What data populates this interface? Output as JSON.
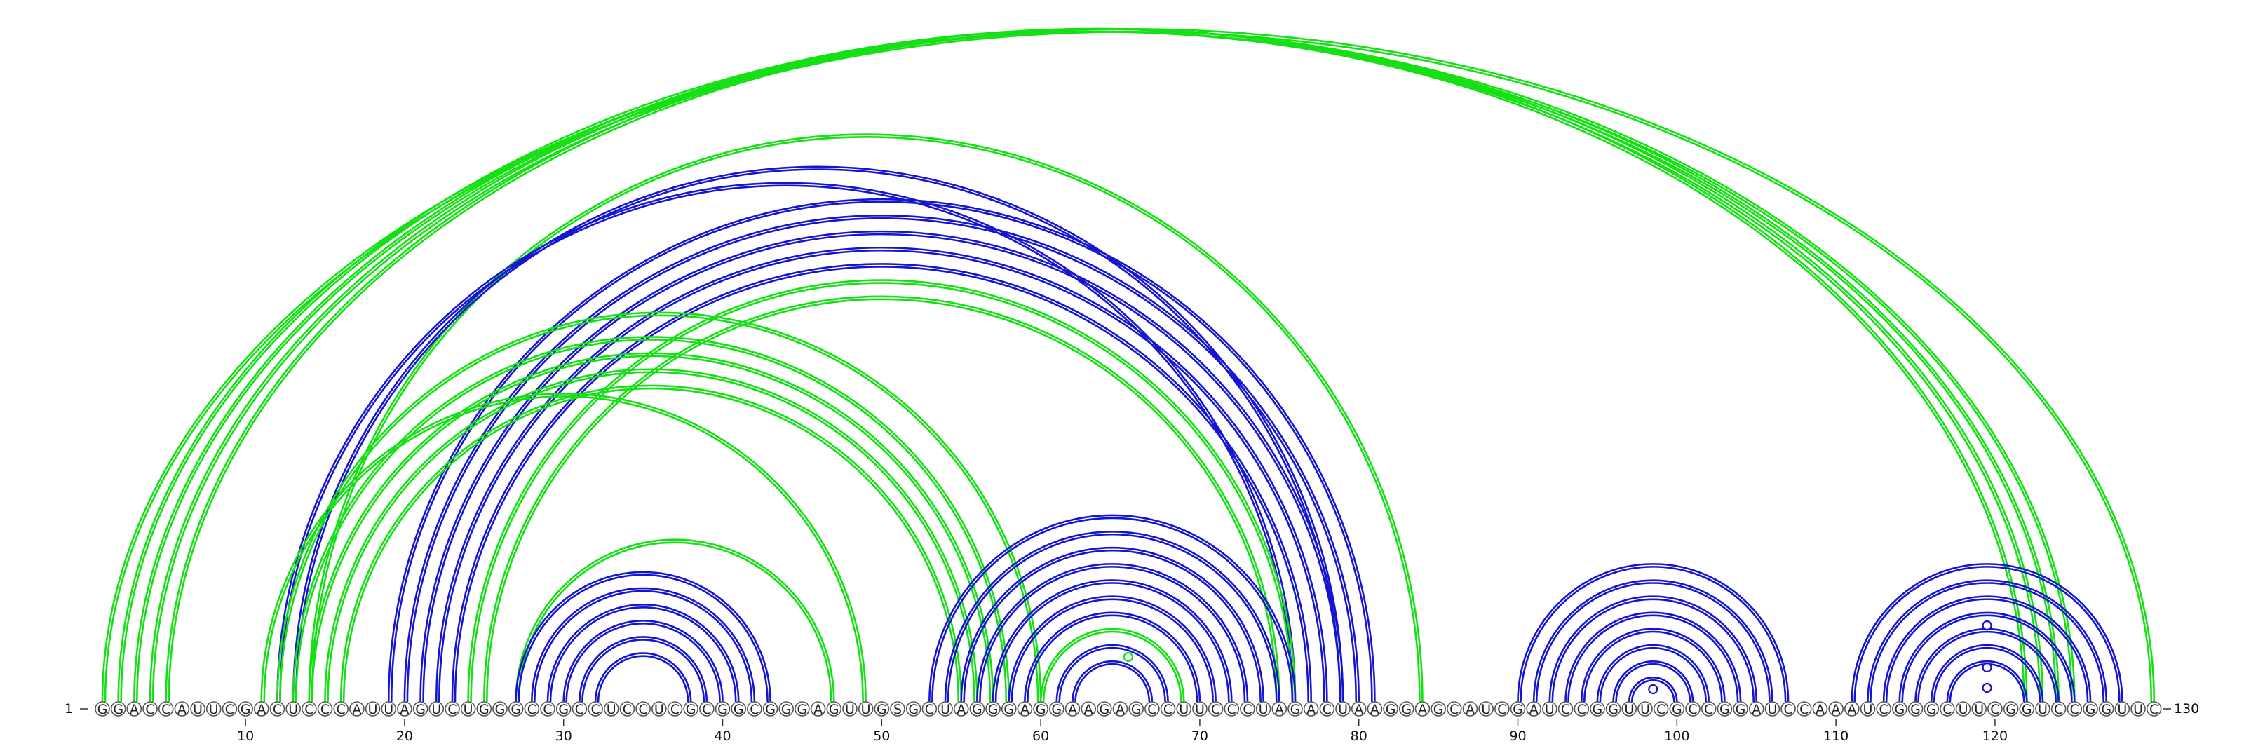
{
  "sequence": "GGACCAUUCGACUCCCAUUAGUCUGGGCCGCCUCCUCGCGGCGGGAGUUGSGCUAGGGAGGAAGAGCCUUCCCUAGACUAAGGAGCAUCGAUCCGGUUCGCCGGAUCCAAAUCGGGCUUCGGUCCGGUUC",
  "start_label": "1",
  "end_label": "130",
  "ticks": [
    "10",
    "20",
    "30",
    "40",
    "50",
    "60",
    "70",
    "80",
    "90",
    "100",
    "110",
    "120"
  ],
  "colors": {
    "blue": "#1414d2",
    "green": "#14e014"
  },
  "chart_data": {
    "type": "arc-diagram",
    "length": 130,
    "ticks": [
      10,
      20,
      30,
      40,
      50,
      60,
      70,
      80,
      90,
      100,
      110,
      120
    ],
    "pairs": [
      {
        "i": 1,
        "j": 130,
        "color": "green"
      },
      {
        "i": 2,
        "j": 125,
        "color": "green"
      },
      {
        "i": 3,
        "j": 124,
        "color": "green"
      },
      {
        "i": 4,
        "j": 123,
        "color": "green"
      },
      {
        "i": 5,
        "j": 122,
        "color": "green"
      },
      {
        "i": 11,
        "j": 49,
        "color": "green"
      },
      {
        "i": 12,
        "j": 76,
        "color": "blue"
      },
      {
        "i": 12,
        "j": 60,
        "color": "green"
      },
      {
        "i": 13,
        "j": 79,
        "color": "blue"
      },
      {
        "i": 13,
        "j": 58,
        "color": "green"
      },
      {
        "i": 14,
        "j": 57,
        "color": "green"
      },
      {
        "i": 14,
        "j": 84,
        "color": "green"
      },
      {
        "i": 15,
        "j": 56,
        "color": "green"
      },
      {
        "i": 16,
        "j": 55,
        "color": "green"
      },
      {
        "i": 19,
        "j": 81,
        "color": "blue"
      },
      {
        "i": 20,
        "j": 80,
        "color": "blue"
      },
      {
        "i": 21,
        "j": 79,
        "color": "blue"
      },
      {
        "i": 22,
        "j": 78,
        "color": "blue"
      },
      {
        "i": 23,
        "j": 77,
        "color": "blue"
      },
      {
        "i": 24,
        "j": 76,
        "color": "green"
      },
      {
        "i": 25,
        "j": 75,
        "color": "green"
      },
      {
        "i": 27,
        "j": 47,
        "color": "green"
      },
      {
        "i": 27,
        "j": 43,
        "color": "blue"
      },
      {
        "i": 28,
        "j": 42,
        "color": "blue"
      },
      {
        "i": 29,
        "j": 41,
        "color": "blue"
      },
      {
        "i": 30,
        "j": 40,
        "color": "blue"
      },
      {
        "i": 31,
        "j": 39,
        "color": "blue"
      },
      {
        "i": 32,
        "j": 38,
        "color": "blue"
      },
      {
        "i": 53,
        "j": 76,
        "color": "blue"
      },
      {
        "i": 54,
        "j": 75,
        "color": "blue"
      },
      {
        "i": 55,
        "j": 74,
        "color": "blue"
      },
      {
        "i": 56,
        "j": 73,
        "color": "blue"
      },
      {
        "i": 57,
        "j": 72,
        "color": "blue"
      },
      {
        "i": 58,
        "j": 71,
        "color": "blue"
      },
      {
        "i": 59,
        "j": 70,
        "color": "blue"
      },
      {
        "i": 60,
        "j": 69,
        "color": "green"
      },
      {
        "i": 61,
        "j": 68,
        "color": "blue"
      },
      {
        "i": 62,
        "j": 67,
        "color": "blue"
      },
      {
        "i": 90,
        "j": 107,
        "color": "blue"
      },
      {
        "i": 91,
        "j": 106,
        "color": "blue"
      },
      {
        "i": 92,
        "j": 105,
        "color": "blue"
      },
      {
        "i": 93,
        "j": 104,
        "color": "blue"
      },
      {
        "i": 94,
        "j": 103,
        "color": "blue"
      },
      {
        "i": 95,
        "j": 102,
        "color": "blue"
      },
      {
        "i": 96,
        "j": 101,
        "color": "blue"
      },
      {
        "i": 97,
        "j": 100,
        "color": "blue"
      },
      {
        "i": 111,
        "j": 128,
        "color": "blue"
      },
      {
        "i": 112,
        "j": 127,
        "color": "blue"
      },
      {
        "i": 113,
        "j": 126,
        "color": "blue"
      },
      {
        "i": 114,
        "j": 125,
        "color": "blue"
      },
      {
        "i": 115,
        "j": 124,
        "color": "blue"
      },
      {
        "i": 116,
        "j": 123,
        "color": "blue"
      },
      {
        "i": 117,
        "j": 122,
        "color": "blue"
      }
    ]
  }
}
